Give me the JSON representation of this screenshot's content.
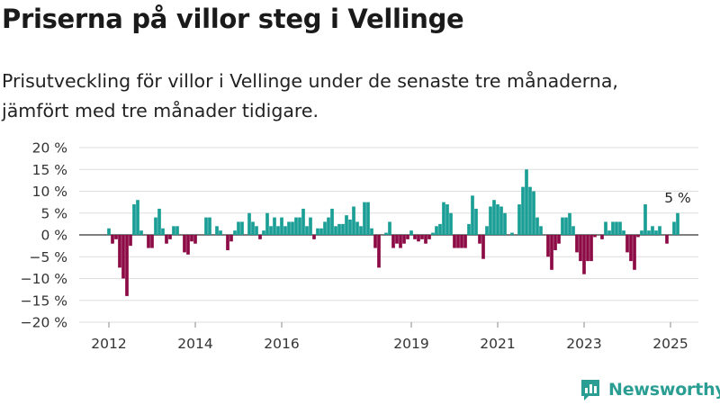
{
  "title": "Priserna på villor steg i Vellinge",
  "subtitle": "Prisutveckling för villor i Vellinge under de senaste tre månaderna, jämfört med tre månader tidigare.",
  "logo": {
    "text": "Newsworthy",
    "icon": "bar-chart-icon",
    "color": "#2b9e93"
  },
  "chart_data": {
    "type": "bar",
    "title": "",
    "xlabel": "",
    "ylabel": "",
    "ylim": [
      -20,
      20
    ],
    "y_ticks": [
      {
        "value": 20,
        "label": "20 %"
      },
      {
        "value": 15,
        "label": "15 %"
      },
      {
        "value": 10,
        "label": "10 %"
      },
      {
        "value": 5,
        "label": "5 %"
      },
      {
        "value": 0,
        "label": "0 %"
      },
      {
        "value": -5,
        "label": "−5 %"
      },
      {
        "value": -10,
        "label": "−10 %"
      },
      {
        "value": -15,
        "label": "−15 %"
      },
      {
        "value": -20,
        "label": "−20 %"
      }
    ],
    "x_ticks": [
      "2012",
      "2014",
      "2016",
      "2019",
      "2021",
      "2023",
      "2025"
    ],
    "grid": true,
    "colors": {
      "positive": "#1a9e96",
      "negative": "#8c0a45",
      "grid": "#dddddd",
      "zero": "#333333"
    },
    "annotation": "5 %",
    "start": "2012-01",
    "end": "2025-01",
    "values": [
      1.5,
      -2,
      -1,
      -7.5,
      -10,
      -14,
      -2.5,
      7,
      8,
      1,
      0,
      -3,
      -3,
      4,
      6,
      1.5,
      -2,
      -1,
      2,
      2,
      0,
      -4,
      -4.5,
      -1.5,
      -2,
      0,
      0,
      4,
      4,
      0,
      2,
      1,
      0,
      -3.5,
      -1.5,
      1,
      3,
      3,
      0,
      5,
      3,
      2,
      -1,
      1,
      5,
      2,
      4,
      2,
      4,
      2,
      3,
      3,
      4,
      4,
      6,
      2,
      4,
      -1,
      1.5,
      1.5,
      3,
      4,
      6,
      2,
      2.5,
      2.5,
      4.5,
      3.5,
      6.5,
      3,
      2,
      7.5,
      7.5,
      1.5,
      -3,
      -7.5,
      0,
      0.5,
      3,
      -3,
      -2,
      -3,
      -2,
      -1,
      1,
      -1,
      -1.5,
      -1,
      -2,
      -1,
      0.5,
      2,
      2.5,
      7.5,
      7,
      5,
      -3,
      -3,
      -3,
      -3,
      2.5,
      9,
      6,
      -2,
      -5.5,
      2,
      6.5,
      8,
      7,
      6.5,
      5,
      0,
      0.5,
      0,
      7,
      11,
      15,
      11,
      10,
      4,
      2,
      0,
      -5,
      -8,
      -3.5,
      -2,
      4,
      4,
      5,
      2,
      -4,
      -6,
      -9,
      -6,
      -6,
      -0.5,
      0,
      -1,
      3,
      1,
      3,
      3,
      3,
      1,
      -4,
      -6,
      -8,
      -0.5,
      1,
      7,
      1,
      2,
      1,
      2,
      0,
      -2,
      0,
      3,
      5
    ]
  }
}
